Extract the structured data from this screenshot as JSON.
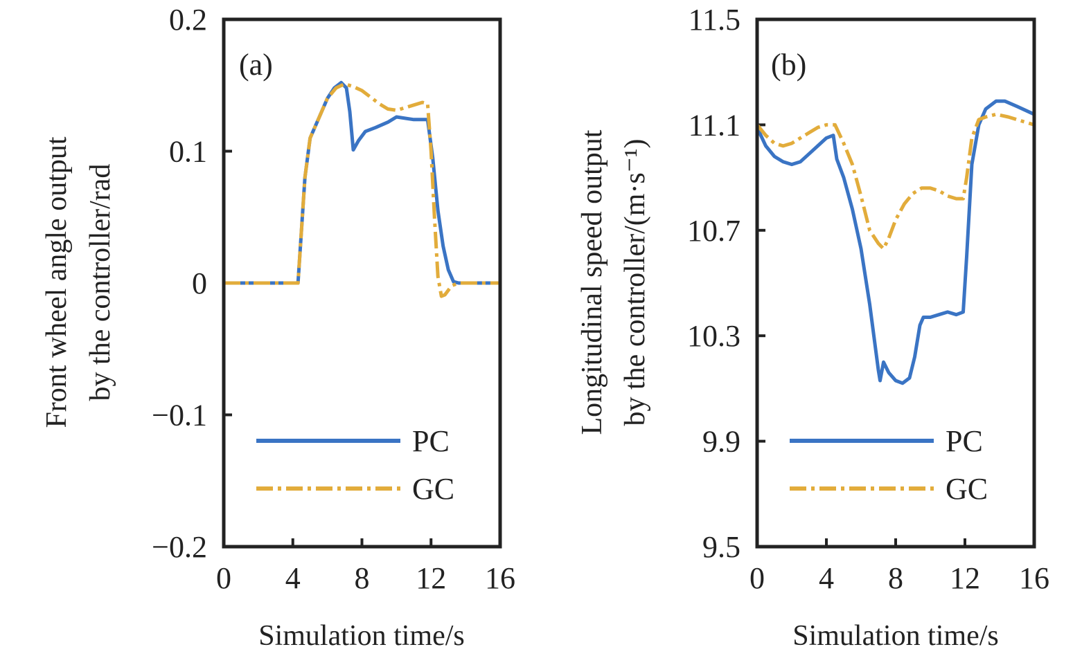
{
  "colors": {
    "pc": "#3a74c4",
    "gc": "#e2ac3b",
    "axis": "#222222"
  },
  "chart_data": [
    {
      "type": "line",
      "panel_label": "(a)",
      "xlabel": "Simulation time/s",
      "ylabel_lines": [
        "Front wheel angle output",
        "by the controller/rad"
      ],
      "xlim": [
        0,
        16
      ],
      "ylim": [
        -0.2,
        0.2
      ],
      "xticks": [
        0,
        4,
        8,
        12,
        16
      ],
      "xtick_labels": [
        "0",
        "4",
        "8",
        "12",
        "16"
      ],
      "yticks": [
        -0.2,
        -0.1,
        0,
        0.1,
        0.2
      ],
      "ytick_labels": [
        "−0.2",
        "−0.1",
        "0",
        "0.1",
        "0.2"
      ],
      "legend_position": "lower-right",
      "series": [
        {
          "name": "PC",
          "style": "solid",
          "x": [
            0,
            4.3,
            4.5,
            4.7,
            5.0,
            5.5,
            6.0,
            6.4,
            6.8,
            7.1,
            7.3,
            7.5,
            7.8,
            8.2,
            8.8,
            9.5,
            10.0,
            11.0,
            11.8,
            12.1,
            12.4,
            12.7,
            13.0,
            13.3,
            13.6,
            14.0,
            16.0
          ],
          "y": [
            0,
            0,
            0.04,
            0.08,
            0.11,
            0.125,
            0.14,
            0.148,
            0.152,
            0.148,
            0.13,
            0.101,
            0.108,
            0.115,
            0.118,
            0.122,
            0.126,
            0.124,
            0.124,
            0.095,
            0.055,
            0.028,
            0.01,
            0.001,
            0,
            0,
            0
          ]
        },
        {
          "name": "GC",
          "style": "dashdot",
          "x": [
            0,
            4.3,
            4.5,
            4.7,
            5.0,
            5.5,
            6.0,
            6.5,
            7.0,
            7.5,
            8.0,
            8.5,
            9.0,
            9.5,
            10.0,
            10.5,
            11.0,
            11.5,
            11.8,
            12.0,
            12.2,
            12.4,
            12.6,
            12.8,
            13.2,
            13.6,
            16.0
          ],
          "y": [
            0,
            0,
            0.04,
            0.08,
            0.11,
            0.125,
            0.14,
            0.148,
            0.151,
            0.149,
            0.146,
            0.141,
            0.136,
            0.132,
            0.131,
            0.133,
            0.135,
            0.137,
            0.136,
            0.1,
            0.05,
            0.005,
            -0.01,
            -0.009,
            -0.002,
            0,
            0
          ]
        }
      ]
    },
    {
      "type": "line",
      "panel_label": "(b)",
      "xlabel": "Simulation time/s",
      "ylabel_lines": [
        "Longitudinal speed output",
        "by the controller/(m·s⁻¹)"
      ],
      "xlim": [
        0,
        16
      ],
      "ylim": [
        9.5,
        11.5
      ],
      "xticks": [
        0,
        4,
        8,
        12,
        16
      ],
      "xtick_labels": [
        "0",
        "4",
        "8",
        "12",
        "16"
      ],
      "yticks": [
        9.5,
        9.9,
        10.3,
        10.7,
        11.1,
        11.5
      ],
      "ytick_labels": [
        "9.5",
        "9.9",
        "10.3",
        "10.7",
        "11.1",
        "11.5"
      ],
      "legend_position": "lower-right",
      "series": [
        {
          "name": "PC",
          "style": "solid",
          "x": [
            0,
            0.5,
            1.0,
            1.5,
            2.0,
            2.5,
            3.0,
            3.5,
            4.0,
            4.4,
            4.6,
            5.0,
            5.5,
            6.0,
            6.5,
            7.0,
            7.1,
            7.3,
            7.6,
            8.0,
            8.4,
            8.8,
            9.1,
            9.4,
            9.6,
            10.0,
            10.5,
            11.0,
            11.5,
            11.9,
            12.1,
            12.4,
            12.8,
            13.2,
            13.8,
            14.3,
            15.0,
            16.0
          ],
          "y": [
            11.09,
            11.02,
            10.98,
            10.96,
            10.95,
            10.96,
            10.99,
            11.02,
            11.05,
            11.06,
            10.97,
            10.9,
            10.78,
            10.63,
            10.42,
            10.17,
            10.13,
            10.2,
            10.16,
            10.13,
            10.12,
            10.14,
            10.22,
            10.34,
            10.37,
            10.37,
            10.38,
            10.39,
            10.38,
            10.39,
            10.6,
            10.95,
            11.1,
            11.16,
            11.19,
            11.19,
            11.17,
            11.14
          ]
        },
        {
          "name": "GC",
          "style": "dashdot",
          "x": [
            0,
            0.5,
            1.0,
            1.5,
            2.0,
            2.5,
            3.0,
            3.5,
            4.0,
            4.5,
            5.0,
            5.5,
            6.0,
            6.5,
            7.0,
            7.3,
            7.6,
            8.0,
            8.5,
            9.0,
            9.5,
            10.0,
            10.5,
            11.0,
            11.5,
            11.9,
            12.1,
            12.4,
            12.8,
            13.2,
            13.8,
            14.5,
            15.0,
            16.0
          ],
          "y": [
            11.1,
            11.06,
            11.03,
            11.02,
            11.03,
            11.05,
            11.07,
            11.09,
            11.1,
            11.1,
            11.03,
            10.95,
            10.83,
            10.7,
            10.65,
            10.63,
            10.67,
            10.74,
            10.8,
            10.84,
            10.86,
            10.86,
            10.85,
            10.83,
            10.82,
            10.82,
            10.9,
            11.05,
            11.12,
            11.13,
            11.14,
            11.13,
            11.12,
            11.1
          ]
        }
      ]
    }
  ]
}
